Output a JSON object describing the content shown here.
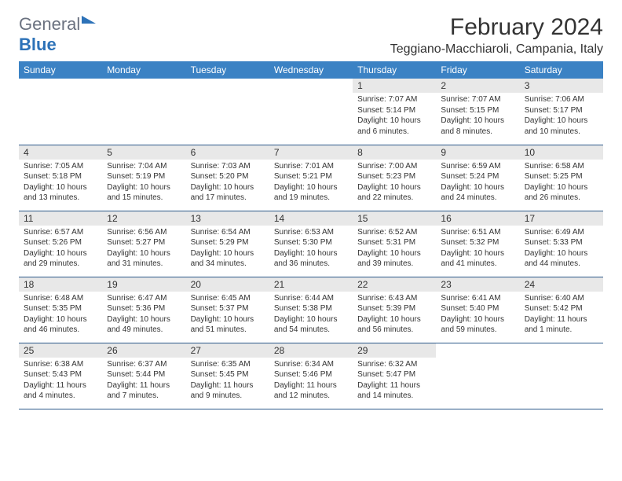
{
  "brand": {
    "word1": "General",
    "word2": "Blue"
  },
  "title": "February 2024",
  "location": "Teggiano-Macchiaroli, Campania, Italy",
  "dayHeaders": [
    "Sunday",
    "Monday",
    "Tuesday",
    "Wednesday",
    "Thursday",
    "Friday",
    "Saturday"
  ],
  "colors": {
    "headerBg": "#3b82c4",
    "headerText": "#ffffff",
    "dayNumBg": "#e8e8e8",
    "border": "#2d5a8a",
    "brandBlue": "#2d72b8",
    "brandGray": "#6b7280"
  },
  "weeks": [
    [
      {
        "n": "",
        "sr": "",
        "ss": "",
        "dl": ""
      },
      {
        "n": "",
        "sr": "",
        "ss": "",
        "dl": ""
      },
      {
        "n": "",
        "sr": "",
        "ss": "",
        "dl": ""
      },
      {
        "n": "",
        "sr": "",
        "ss": "",
        "dl": ""
      },
      {
        "n": "1",
        "sr": "Sunrise: 7:07 AM",
        "ss": "Sunset: 5:14 PM",
        "dl": "Daylight: 10 hours and 6 minutes."
      },
      {
        "n": "2",
        "sr": "Sunrise: 7:07 AM",
        "ss": "Sunset: 5:15 PM",
        "dl": "Daylight: 10 hours and 8 minutes."
      },
      {
        "n": "3",
        "sr": "Sunrise: 7:06 AM",
        "ss": "Sunset: 5:17 PM",
        "dl": "Daylight: 10 hours and 10 minutes."
      }
    ],
    [
      {
        "n": "4",
        "sr": "Sunrise: 7:05 AM",
        "ss": "Sunset: 5:18 PM",
        "dl": "Daylight: 10 hours and 13 minutes."
      },
      {
        "n": "5",
        "sr": "Sunrise: 7:04 AM",
        "ss": "Sunset: 5:19 PM",
        "dl": "Daylight: 10 hours and 15 minutes."
      },
      {
        "n": "6",
        "sr": "Sunrise: 7:03 AM",
        "ss": "Sunset: 5:20 PM",
        "dl": "Daylight: 10 hours and 17 minutes."
      },
      {
        "n": "7",
        "sr": "Sunrise: 7:01 AM",
        "ss": "Sunset: 5:21 PM",
        "dl": "Daylight: 10 hours and 19 minutes."
      },
      {
        "n": "8",
        "sr": "Sunrise: 7:00 AM",
        "ss": "Sunset: 5:23 PM",
        "dl": "Daylight: 10 hours and 22 minutes."
      },
      {
        "n": "9",
        "sr": "Sunrise: 6:59 AM",
        "ss": "Sunset: 5:24 PM",
        "dl": "Daylight: 10 hours and 24 minutes."
      },
      {
        "n": "10",
        "sr": "Sunrise: 6:58 AM",
        "ss": "Sunset: 5:25 PM",
        "dl": "Daylight: 10 hours and 26 minutes."
      }
    ],
    [
      {
        "n": "11",
        "sr": "Sunrise: 6:57 AM",
        "ss": "Sunset: 5:26 PM",
        "dl": "Daylight: 10 hours and 29 minutes."
      },
      {
        "n": "12",
        "sr": "Sunrise: 6:56 AM",
        "ss": "Sunset: 5:27 PM",
        "dl": "Daylight: 10 hours and 31 minutes."
      },
      {
        "n": "13",
        "sr": "Sunrise: 6:54 AM",
        "ss": "Sunset: 5:29 PM",
        "dl": "Daylight: 10 hours and 34 minutes."
      },
      {
        "n": "14",
        "sr": "Sunrise: 6:53 AM",
        "ss": "Sunset: 5:30 PM",
        "dl": "Daylight: 10 hours and 36 minutes."
      },
      {
        "n": "15",
        "sr": "Sunrise: 6:52 AM",
        "ss": "Sunset: 5:31 PM",
        "dl": "Daylight: 10 hours and 39 minutes."
      },
      {
        "n": "16",
        "sr": "Sunrise: 6:51 AM",
        "ss": "Sunset: 5:32 PM",
        "dl": "Daylight: 10 hours and 41 minutes."
      },
      {
        "n": "17",
        "sr": "Sunrise: 6:49 AM",
        "ss": "Sunset: 5:33 PM",
        "dl": "Daylight: 10 hours and 44 minutes."
      }
    ],
    [
      {
        "n": "18",
        "sr": "Sunrise: 6:48 AM",
        "ss": "Sunset: 5:35 PM",
        "dl": "Daylight: 10 hours and 46 minutes."
      },
      {
        "n": "19",
        "sr": "Sunrise: 6:47 AM",
        "ss": "Sunset: 5:36 PM",
        "dl": "Daylight: 10 hours and 49 minutes."
      },
      {
        "n": "20",
        "sr": "Sunrise: 6:45 AM",
        "ss": "Sunset: 5:37 PM",
        "dl": "Daylight: 10 hours and 51 minutes."
      },
      {
        "n": "21",
        "sr": "Sunrise: 6:44 AM",
        "ss": "Sunset: 5:38 PM",
        "dl": "Daylight: 10 hours and 54 minutes."
      },
      {
        "n": "22",
        "sr": "Sunrise: 6:43 AM",
        "ss": "Sunset: 5:39 PM",
        "dl": "Daylight: 10 hours and 56 minutes."
      },
      {
        "n": "23",
        "sr": "Sunrise: 6:41 AM",
        "ss": "Sunset: 5:40 PM",
        "dl": "Daylight: 10 hours and 59 minutes."
      },
      {
        "n": "24",
        "sr": "Sunrise: 6:40 AM",
        "ss": "Sunset: 5:42 PM",
        "dl": "Daylight: 11 hours and 1 minute."
      }
    ],
    [
      {
        "n": "25",
        "sr": "Sunrise: 6:38 AM",
        "ss": "Sunset: 5:43 PM",
        "dl": "Daylight: 11 hours and 4 minutes."
      },
      {
        "n": "26",
        "sr": "Sunrise: 6:37 AM",
        "ss": "Sunset: 5:44 PM",
        "dl": "Daylight: 11 hours and 7 minutes."
      },
      {
        "n": "27",
        "sr": "Sunrise: 6:35 AM",
        "ss": "Sunset: 5:45 PM",
        "dl": "Daylight: 11 hours and 9 minutes."
      },
      {
        "n": "28",
        "sr": "Sunrise: 6:34 AM",
        "ss": "Sunset: 5:46 PM",
        "dl": "Daylight: 11 hours and 12 minutes."
      },
      {
        "n": "29",
        "sr": "Sunrise: 6:32 AM",
        "ss": "Sunset: 5:47 PM",
        "dl": "Daylight: 11 hours and 14 minutes."
      },
      {
        "n": "",
        "sr": "",
        "ss": "",
        "dl": ""
      },
      {
        "n": "",
        "sr": "",
        "ss": "",
        "dl": ""
      }
    ]
  ]
}
